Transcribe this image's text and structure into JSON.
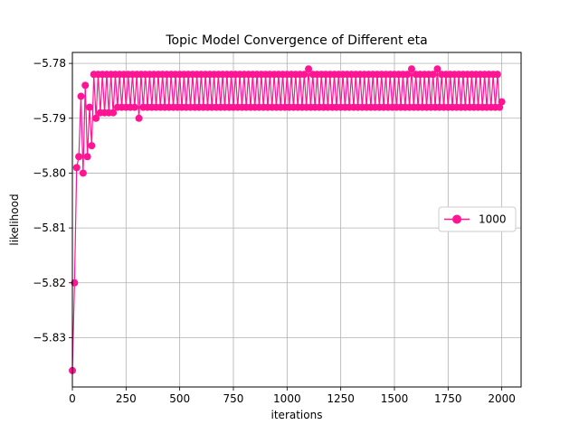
{
  "chart_data": {
    "type": "line",
    "title": "Topic Model Convergence of Different eta",
    "xlabel": "iterations",
    "ylabel": "likelihood",
    "xlim": [
      0,
      2090
    ],
    "ylim": [
      -5.839,
      -5.778
    ],
    "xticks": [
      0,
      250,
      500,
      750,
      1000,
      1250,
      1500,
      1750,
      2000
    ],
    "yticks": [
      -5.83,
      -5.82,
      -5.81,
      -5.8,
      -5.79,
      -5.78
    ],
    "ytick_labels": [
      "−5.83",
      "−5.82",
      "−5.81",
      "−5.80",
      "−5.79",
      "−5.78"
    ],
    "grid": true,
    "legend_position": "center-right",
    "series": [
      {
        "name": "1000",
        "color": "#ff1493",
        "marker": "circle",
        "x_start": 0,
        "x_step": 10,
        "initial_values": [
          -5.836,
          -5.82,
          -5.799,
          -5.797,
          -5.786,
          -5.8,
          -5.784,
          -5.797,
          -5.788,
          -5.795
        ],
        "oscillation": {
          "high_values": [
            -5.784,
            -5.783,
            -5.782,
            -5.782,
            -5.782
          ],
          "low_values": [
            -5.795,
            -5.792,
            -5.79,
            -5.789,
            -5.788
          ],
          "high_x_breaks": [
            50,
            100,
            130,
            200
          ],
          "steady_high": -5.782,
          "steady_low_range": [
            -5.788,
            -5.789
          ],
          "outlier_highs": [
            {
              "x": 450,
              "y": -5.781
            },
            {
              "x": 690,
              "y": -5.781
            },
            {
              "x": 850,
              "y": -5.781
            },
            {
              "x": 870,
              "y": -5.781
            },
            {
              "x": 1100,
              "y": -5.781
            },
            {
              "x": 1110,
              "y": -5.781
            },
            {
              "x": 1580,
              "y": -5.781
            },
            {
              "x": 1630,
              "y": -5.781
            },
            {
              "x": 1700,
              "y": -5.781
            }
          ],
          "outlier_lows": [
            {
              "x": 310,
              "y": -5.79
            },
            {
              "x": 1380,
              "y": -5.79
            },
            {
              "x": 1400,
              "y": -5.79
            },
            {
              "x": 1460,
              "y": -5.79
            }
          ]
        },
        "final_value": -5.787,
        "x_end": 2000
      }
    ]
  }
}
